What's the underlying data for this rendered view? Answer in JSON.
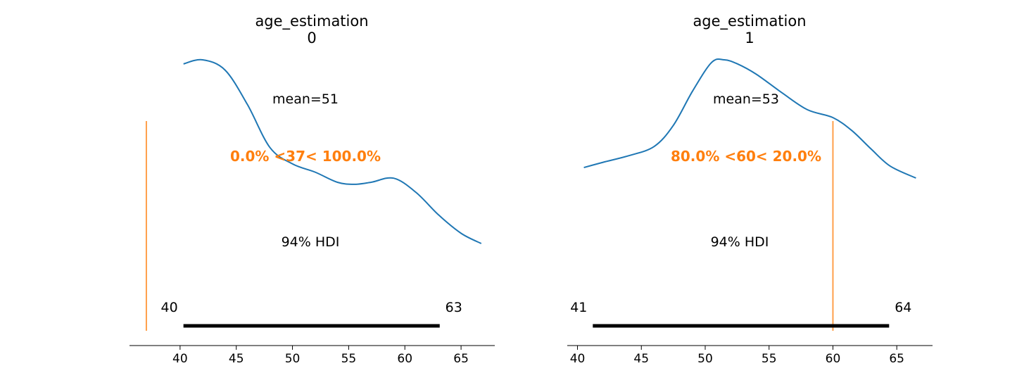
{
  "colors": {
    "density": "#1f77b4",
    "reference": "#ff7f0e",
    "hdi": "#000000",
    "text": "#000000",
    "axis": "#000000"
  },
  "chart_data": [
    {
      "type": "line",
      "title_lines": [
        "age_estimation",
        "0"
      ],
      "xticks": [
        40,
        45,
        50,
        55,
        60,
        65
      ],
      "xlim": [
        35.5,
        68
      ],
      "mean_label": "mean=51",
      "hdi_label": "94% HDI",
      "hdi": [
        40.3,
        63.1
      ],
      "hdi_low_label": "40",
      "hdi_high_label": "63",
      "ref_value": 37,
      "ref_label": "0.0% <37< 100.0%",
      "grid": false,
      "density": {
        "x": [
          40.3,
          42,
          44,
          46,
          48,
          50,
          52,
          54,
          55.5,
          57,
          59,
          61,
          63,
          65,
          66.8
        ],
        "y": [
          0.88,
          0.9,
          0.85,
          0.68,
          0.47,
          0.39,
          0.35,
          0.3,
          0.29,
          0.3,
          0.32,
          0.25,
          0.14,
          0.05,
          0.0
        ]
      }
    },
    {
      "type": "line",
      "title_lines": [
        "age_estimation",
        "1"
      ],
      "xticks": [
        40,
        45,
        50,
        55,
        60,
        65
      ],
      "xlim": [
        39.2,
        67.8
      ],
      "mean_label": "mean=53",
      "hdi_label": "94% HDI",
      "hdi": [
        41.2,
        64.4
      ],
      "hdi_low_label": "41",
      "hdi_high_label": "64",
      "ref_value": 60,
      "ref_label": "80.0% <60< 20.0%",
      "grid": false,
      "density": {
        "x": [
          40.5,
          42,
          44,
          46,
          47.5,
          49,
          50.5,
          51.5,
          52.5,
          54,
          56,
          58,
          60,
          61.5,
          63,
          64.5,
          66.5
        ],
        "y": [
          0.0,
          0.04,
          0.09,
          0.16,
          0.32,
          0.58,
          0.8,
          0.82,
          0.79,
          0.71,
          0.57,
          0.44,
          0.38,
          0.28,
          0.14,
          0.01,
          -0.08
        ]
      }
    }
  ]
}
